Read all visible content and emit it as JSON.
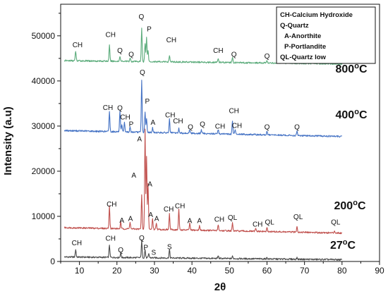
{
  "chart_data": {
    "type": "line",
    "xlabel": "2θ",
    "ylabel": "Intensity (a.u)",
    "xlim": [
      5,
      90
    ],
    "ylim": [
      0,
      57000
    ],
    "xticks": [
      "10",
      "20",
      "30",
      "40",
      "50",
      "60",
      "70",
      "80",
      "90"
    ],
    "yticks": [
      "0",
      "10000",
      "20000",
      "30000",
      "40000",
      "50000"
    ],
    "legend": {
      "position": "top-right",
      "entries": [
        "CH-Calcium Hydroxide",
        "Q-Quartz",
        "A-Anorthite",
        "P-Portlandite",
        "QL-Quartz low"
      ]
    },
    "series": [
      {
        "name": "27°C",
        "label": "27",
        "color": "#4a4a4a",
        "baseline": 1000,
        "end": 400,
        "peaks": [
          [
            9,
            1700
          ],
          [
            18,
            2800
          ],
          [
            21,
            1100
          ],
          [
            26.6,
            3800
          ],
          [
            27.5,
            1800
          ],
          [
            28.5,
            900
          ],
          [
            34,
            1900
          ],
          [
            47,
            600
          ],
          [
            50.8,
            500
          ],
          [
            60,
            300
          ],
          [
            68,
            300
          ]
        ],
        "annotations": [
          {
            "text": "CH",
            "x": 9.3,
            "y": 3600
          },
          {
            "text": "CH",
            "x": 18.3,
            "y": 4600
          },
          {
            "text": "Q",
            "x": 21,
            "y": 2000
          },
          {
            "text": "Q",
            "x": 26.6,
            "y": 4700
          },
          {
            "text": "P",
            "x": 27.7,
            "y": 2600
          },
          {
            "text": "S",
            "x": 29.8,
            "y": 1500
          },
          {
            "text": "S",
            "x": 34,
            "y": 2700
          }
        ]
      },
      {
        "name": "200°C",
        "label": "200",
        "color": "#c0504d",
        "baseline": 7500,
        "end": 6300,
        "peaks": [
          [
            18,
            5000
          ],
          [
            21,
            1400
          ],
          [
            23.5,
            1600
          ],
          [
            26.6,
            7500
          ],
          [
            27.5,
            22000
          ],
          [
            27.9,
            16000
          ],
          [
            28.3,
            10000
          ],
          [
            29.5,
            2500
          ],
          [
            30.5,
            1500
          ],
          [
            34,
            3500
          ],
          [
            36.5,
            4500
          ],
          [
            39.4,
            1500
          ],
          [
            42,
            1000
          ],
          [
            47,
            1400
          ],
          [
            50.8,
            1700
          ],
          [
            57,
            600
          ],
          [
            60,
            800
          ],
          [
            68,
            1400
          ],
          [
            78,
            500
          ]
        ],
        "annotations": [
          {
            "text": "CH",
            "x": 18.6,
            "y": 12200
          },
          {
            "text": "A",
            "x": 21.3,
            "y": 8600
          },
          {
            "text": "A",
            "x": 23.6,
            "y": 9000
          },
          {
            "text": "A",
            "x": 26,
            "y": 26600
          },
          {
            "text": "A",
            "x": 24.5,
            "y": 18600
          },
          {
            "text": "A",
            "x": 28.8,
            "y": 16600
          },
          {
            "text": "A",
            "x": 29,
            "y": 9800
          },
          {
            "text": "A",
            "x": 30.6,
            "y": 9000
          },
          {
            "text": "CH",
            "x": 33.8,
            "y": 11100
          },
          {
            "text": "CH",
            "x": 36.8,
            "y": 11800
          },
          {
            "text": "A",
            "x": 39.4,
            "y": 8500
          },
          {
            "text": "A",
            "x": 42,
            "y": 8500
          },
          {
            "text": "CH",
            "x": 47.3,
            "y": 8800
          },
          {
            "text": "QL",
            "x": 50.8,
            "y": 9200
          },
          {
            "text": "CH",
            "x": 57.5,
            "y": 7700
          },
          {
            "text": "QL",
            "x": 60.7,
            "y": 8200
          },
          {
            "text": "QL",
            "x": 68.3,
            "y": 9400
          },
          {
            "text": "QL",
            "x": 78.3,
            "y": 8200
          }
        ]
      },
      {
        "name": "400°C",
        "label": "400",
        "color": "#4472c4",
        "baseline": 29000,
        "end": 27700,
        "peaks": [
          [
            18,
            4500
          ],
          [
            20.8,
            4500
          ],
          [
            21.3,
            1500
          ],
          [
            22,
            2200
          ],
          [
            23.5,
            1000
          ],
          [
            26.6,
            11500
          ],
          [
            27.5,
            4500
          ],
          [
            27.9,
            3000
          ],
          [
            29.5,
            1000
          ],
          [
            34,
            3000
          ],
          [
            36.5,
            1000
          ],
          [
            39.4,
            800
          ],
          [
            42.5,
            800
          ],
          [
            47,
            1000
          ],
          [
            50.8,
            3000
          ],
          [
            51.5,
            1000
          ],
          [
            60,
            800
          ],
          [
            68,
            900
          ]
        ],
        "annotations": [
          {
            "text": "CH",
            "x": 17.6,
            "y": 33600
          },
          {
            "text": "Q",
            "x": 20.8,
            "y": 33500
          },
          {
            "text": "CH",
            "x": 22.2,
            "y": 31500
          },
          {
            "text": "P",
            "x": 23.8,
            "y": 29900
          },
          {
            "text": "Q",
            "x": 26.8,
            "y": 41400
          },
          {
            "text": "P",
            "x": 28.1,
            "y": 35000
          },
          {
            "text": "A",
            "x": 29.6,
            "y": 30300
          },
          {
            "text": "CH",
            "x": 34.2,
            "y": 31900
          },
          {
            "text": "CH",
            "x": 36.3,
            "y": 30600
          },
          {
            "text": "Q",
            "x": 39.6,
            "y": 29300
          },
          {
            "text": "Q",
            "x": 42.8,
            "y": 29900
          },
          {
            "text": "CH",
            "x": 47.5,
            "y": 29400
          },
          {
            "text": "CH",
            "x": 51.2,
            "y": 32900
          },
          {
            "text": "CH",
            "x": 52,
            "y": 29600
          },
          {
            "text": "Q",
            "x": 60,
            "y": 29300
          },
          {
            "text": "Q",
            "x": 68,
            "y": 29300
          }
        ]
      },
      {
        "name": "800°C",
        "label": "800",
        "color": "#5aab7a",
        "baseline": 44500,
        "end": 43800,
        "peaks": [
          [
            9,
            2200
          ],
          [
            18,
            3500
          ],
          [
            20.8,
            1200
          ],
          [
            23.5,
            800
          ],
          [
            26.6,
            7500
          ],
          [
            27.5,
            4000
          ],
          [
            27.9,
            5500
          ],
          [
            28.3,
            2500
          ],
          [
            34,
            1500
          ],
          [
            47,
            900
          ],
          [
            50.8,
            1000
          ],
          [
            60,
            600
          ]
        ],
        "annotations": [
          {
            "text": "CH",
            "x": 9.5,
            "y": 47500
          },
          {
            "text": "CH",
            "x": 18.3,
            "y": 49700
          },
          {
            "text": "Q",
            "x": 20.8,
            "y": 46200
          },
          {
            "text": "Q",
            "x": 23.8,
            "y": 45400
          },
          {
            "text": "Q",
            "x": 26.5,
            "y": 53700
          },
          {
            "text": "P",
            "x": 28.6,
            "y": 51000
          },
          {
            "text": "CH",
            "x": 34.5,
            "y": 48600
          },
          {
            "text": "CH",
            "x": 47,
            "y": 46200
          },
          {
            "text": "Q",
            "x": 51.2,
            "y": 45400
          },
          {
            "text": "Q",
            "x": 60,
            "y": 45000
          }
        ]
      }
    ]
  }
}
